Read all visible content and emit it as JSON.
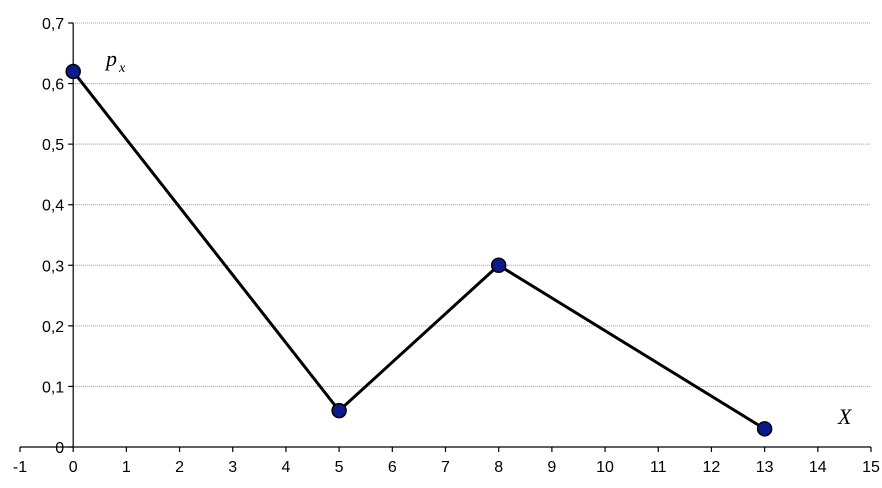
{
  "chart_data": {
    "type": "line",
    "title": "",
    "xlabel": "X",
    "ylabel": "p",
    "ylabel_subscript": "x",
    "x": [
      0,
      5,
      8,
      13
    ],
    "series": [
      {
        "values": [
          0.62,
          0.06,
          0.3,
          0.03
        ]
      }
    ],
    "xlim": [
      -1,
      15
    ],
    "ylim": [
      0,
      0.7
    ],
    "xticks": [
      -1,
      0,
      1,
      2,
      3,
      4,
      5,
      6,
      7,
      8,
      9,
      10,
      11,
      12,
      13,
      14,
      15
    ],
    "xtick_labels": [
      "-1",
      "0",
      "1",
      "2",
      "3",
      "4",
      "5",
      "6",
      "7",
      "8",
      "9",
      "10",
      "11",
      "12",
      "13",
      "14",
      "15"
    ],
    "yticks": [
      0,
      0.1,
      0.2,
      0.3,
      0.4,
      0.5,
      0.6,
      0.7
    ],
    "ytick_labels": [
      "0",
      "0,1",
      "0,2",
      "0,3",
      "0,4",
      "0,5",
      "0,6",
      "0,7"
    ],
    "grid": {
      "horizontal": true,
      "vertical": false
    },
    "legend": "none",
    "colors": {
      "line": "#000000",
      "marker_fill": "#0b1a8c",
      "marker_stroke": "#000000",
      "grid": "#9a9a9a"
    }
  }
}
